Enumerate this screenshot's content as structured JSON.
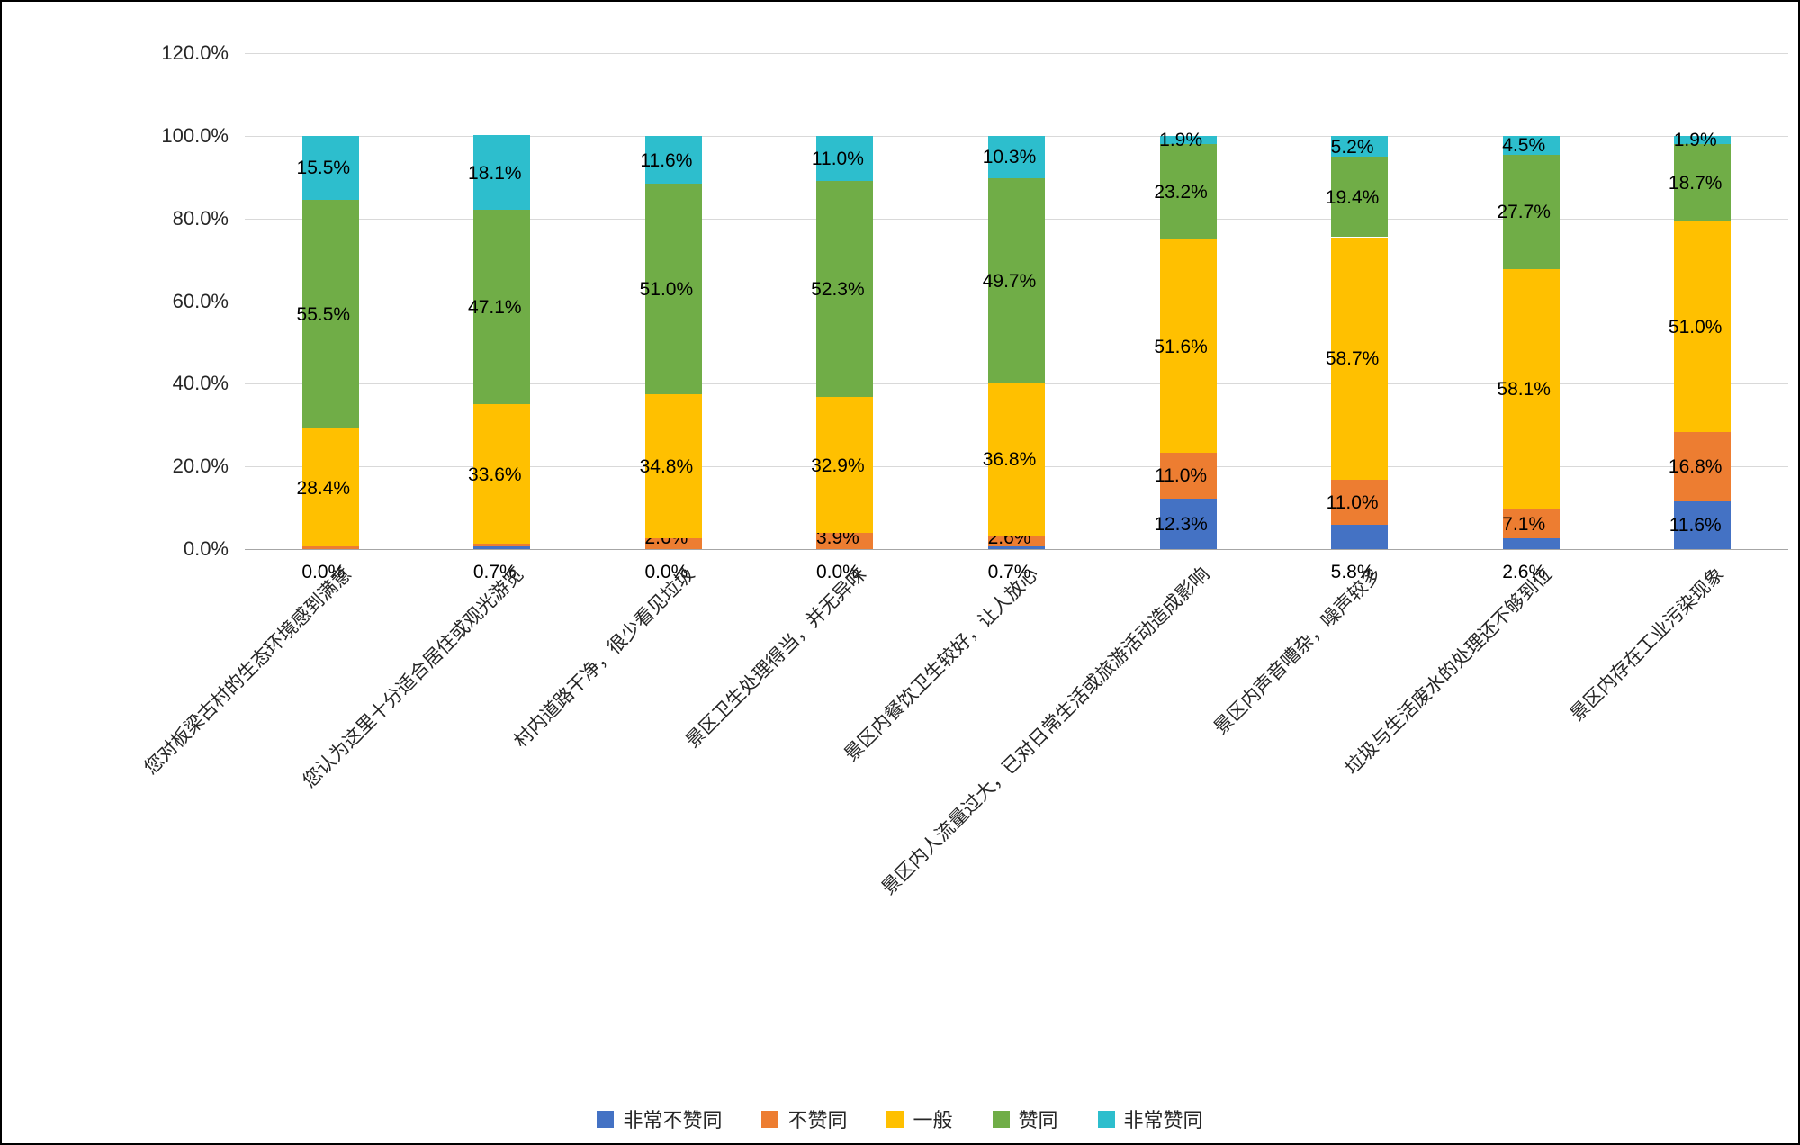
{
  "chart_data": {
    "type": "bar",
    "stacked": true,
    "percent_stacked": true,
    "grid": true,
    "legend_position": "bottom",
    "categories": [
      "您对板梁古村的生态环境感到满意",
      "您认为这里十分适合居住或观光游览",
      "村内道路干净，很少看见垃圾",
      "景区卫生处理得当，并无异味",
      "景区内餐饮卫生较好，让人放心",
      "景区内人流量过大，已对日常生活或旅游活动造成影响",
      "景区内声音嘈杂，噪声较多",
      "垃圾与生活废水的处理还不够到位",
      "景区内存在工业污染现象"
    ],
    "series": [
      {
        "name": "非常不赞同",
        "color": "#4472C4",
        "values": [
          0.0,
          0.7,
          0.0,
          0.0,
          0.7,
          12.3,
          5.8,
          2.6,
          11.6
        ]
      },
      {
        "name": "不赞同",
        "color": "#ED7D31",
        "values": [
          0.7,
          0.7,
          2.6,
          3.9,
          2.6,
          11.0,
          11.0,
          7.1,
          16.8
        ]
      },
      {
        "name": "一般",
        "color": "#FFC000",
        "values": [
          28.4,
          33.6,
          34.8,
          32.9,
          36.8,
          51.6,
          58.7,
          58.1,
          51.0
        ]
      },
      {
        "name": "赞同",
        "color": "#70AD47",
        "values": [
          55.5,
          47.1,
          51.0,
          52.3,
          49.7,
          23.2,
          19.4,
          27.7,
          18.7
        ]
      },
      {
        "name": "非常赞同",
        "color": "#2DBECD",
        "values": [
          15.5,
          18.1,
          11.6,
          11.0,
          10.3,
          1.9,
          5.2,
          4.5,
          1.9
        ]
      }
    ],
    "y_axis": {
      "min": 0,
      "max": 120,
      "step": 20,
      "ticks": [
        "0.0%",
        "20.0%",
        "40.0%",
        "60.0%",
        "80.0%",
        "100.0%",
        "120.0%"
      ]
    },
    "data_labels": true,
    "label_format": "one_decimal_percent",
    "colors": {
      "gridline": "#d9d9d9",
      "axis_line": "#a6a6a6",
      "label_text": "#000000",
      "axis_text": "#262626",
      "background": "#ffffff",
      "border": "#000000"
    }
  }
}
